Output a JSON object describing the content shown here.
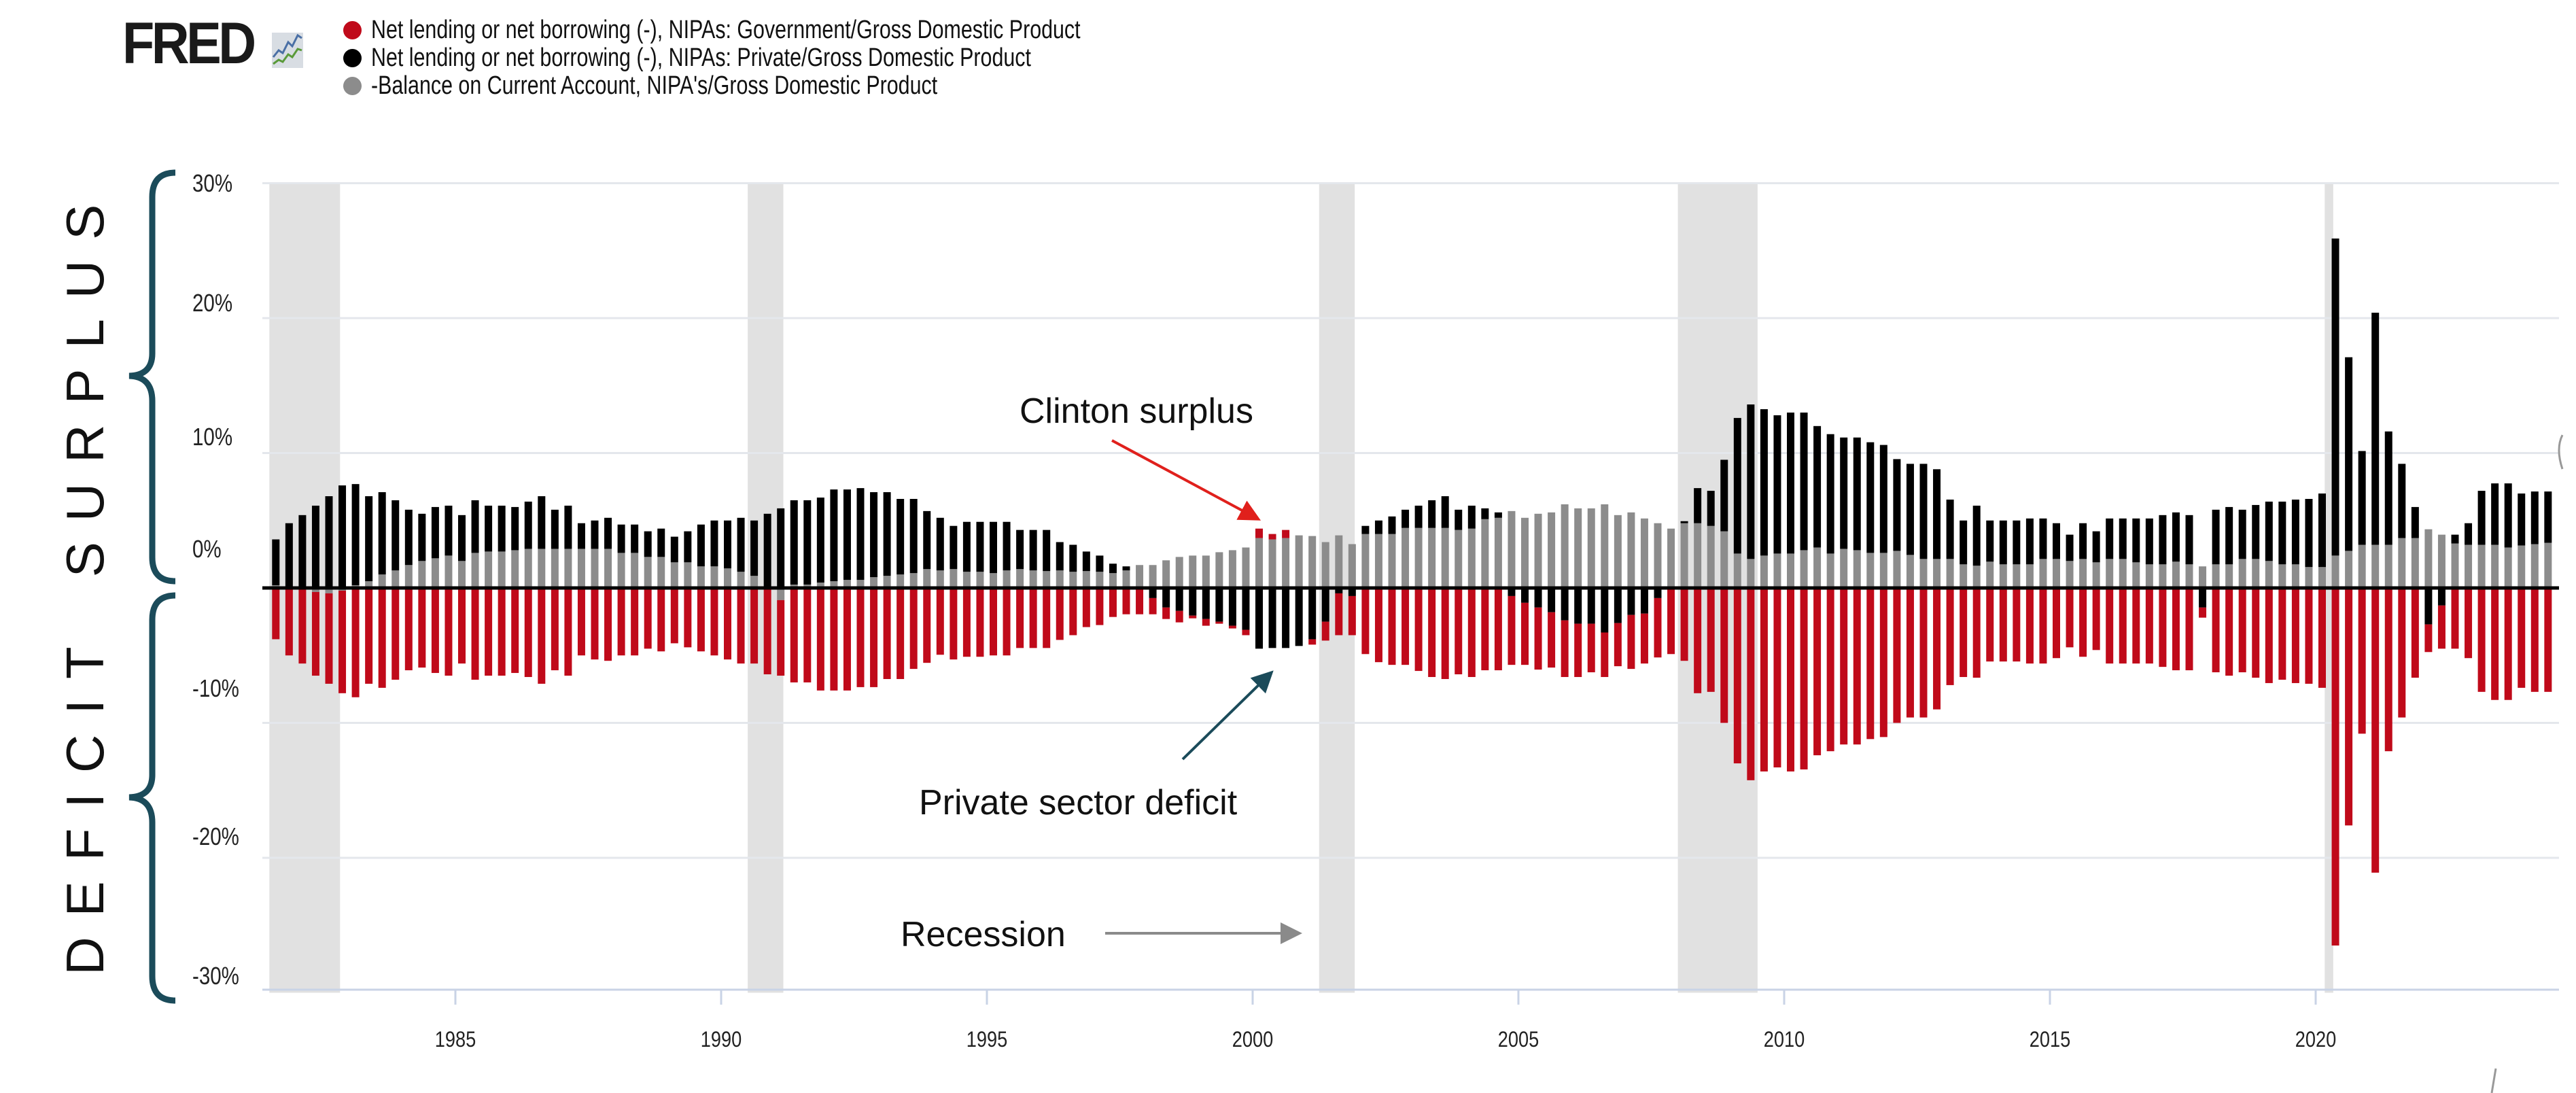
{
  "logo": {
    "text": "FRED",
    "icon": "chart-line-icon"
  },
  "legend": [
    {
      "label": "Net lending or net borrowing (-), NIPAs: Government/Gross Domestic Product",
      "color": "#c00a1a"
    },
    {
      "label": "Net lending or net borrowing (-), NIPAs: Private/Gross Domestic Product",
      "color": "#000000"
    },
    {
      "label": "-Balance on Current Account, NIPA's/Gross Domestic Product",
      "color": "#8c8c8c"
    }
  ],
  "side_labels": {
    "surplus": "SURPLUS",
    "deficit": "DEFICIT",
    "brace_color": "#1b4b5a"
  },
  "annotations": {
    "clinton": {
      "text": "Clinton surplus",
      "arrow_color": "#e0201c"
    },
    "private": {
      "text": "Private sector deficit",
      "arrow_color": "#1b4b5a"
    },
    "recession": {
      "text": "Recession",
      "arrow_color": "#8a8a8a"
    }
  },
  "chart_data": {
    "type": "bar",
    "stacked": true,
    "frequency": "quarterly",
    "start": "1981Q3",
    "end": "2024Q2",
    "ylim": [
      -30,
      30
    ],
    "yticks": [
      "30%",
      "20%",
      "10%",
      "0%",
      "-10%",
      "-20%",
      "-30%"
    ],
    "ytick_values": [
      30,
      20,
      10,
      0,
      -10,
      -20,
      -30
    ],
    "xticks": [
      "1985",
      "1990",
      "1995",
      "2000",
      "2005",
      "2010",
      "2015",
      "2020"
    ],
    "xlim": [
      1981.37,
      2024.58
    ],
    "grid": true,
    "recessions": [
      [
        1981.5,
        1982.83
      ],
      [
        1990.5,
        1991.17
      ],
      [
        2001.25,
        2001.92
      ],
      [
        2008.0,
        2009.5
      ],
      [
        2020.17,
        2020.33
      ]
    ],
    "series": [
      {
        "name": "-Balance on Current Account, NIPA's/Gross Domestic Product",
        "color": "#8c8c8c",
        "values": [
          0.2,
          0.1,
          0.0,
          -0.3,
          -0.4,
          -0.2,
          0.2,
          0.5,
          1.0,
          1.3,
          1.7,
          2.0,
          2.2,
          2.4,
          2.0,
          2.6,
          2.7,
          2.7,
          2.8,
          2.9,
          2.9,
          2.9,
          2.9,
          2.9,
          2.9,
          2.9,
          2.6,
          2.6,
          2.3,
          2.3,
          1.9,
          1.9,
          1.6,
          1.6,
          1.45,
          1.2,
          0.9,
          0.0,
          -0.9,
          0.25,
          0.25,
          0.4,
          0.5,
          0.6,
          0.6,
          0.8,
          0.9,
          1.0,
          1.1,
          1.4,
          1.3,
          1.4,
          1.2,
          1.2,
          1.1,
          1.3,
          1.4,
          1.3,
          1.25,
          1.3,
          1.2,
          1.25,
          1.2,
          1.1,
          1.3,
          1.7,
          1.7,
          2.05,
          2.3,
          2.4,
          2.4,
          2.65,
          2.8,
          3.0,
          3.7,
          3.6,
          3.7,
          3.9,
          3.85,
          3.4,
          3.9,
          3.25,
          4.0,
          4.0,
          4.0,
          4.45,
          4.45,
          4.45,
          4.45,
          4.3,
          4.4,
          5.1,
          5.2,
          5.7,
          5.2,
          5.5,
          5.6,
          6.2,
          5.9,
          5.9,
          6.2,
          5.4,
          5.6,
          5.15,
          4.8,
          4.4,
          4.8,
          4.8,
          4.6,
          4.2,
          2.55,
          2.15,
          2.4,
          2.55,
          2.55,
          2.8,
          3.0,
          2.55,
          2.9,
          2.8,
          2.6,
          2.6,
          2.75,
          2.45,
          2.15,
          2.15,
          2.15,
          1.75,
          1.65,
          1.95,
          1.75,
          1.75,
          1.75,
          2.15,
          2.15,
          2.0,
          2.15,
          1.9,
          2.15,
          2.15,
          1.9,
          1.75,
          1.75,
          1.95,
          1.75,
          1.6,
          1.75,
          1.75,
          2.15,
          2.15,
          2.0,
          1.75,
          1.75,
          1.55,
          1.55,
          2.4,
          2.75,
          3.2,
          3.2,
          3.2,
          3.7,
          3.7,
          4.35,
          3.95,
          3.3,
          3.2,
          3.2,
          3.2,
          3.0,
          3.15,
          3.25,
          3.35
        ]
      },
      {
        "name": "Net lending or net borrowing (-), NIPAs: Private/Gross Domestic Product",
        "color": "#000000",
        "values": [
          3.4,
          4.7,
          5.4,
          6.1,
          6.8,
          7.6,
          7.5,
          6.3,
          6.1,
          5.2,
          4.1,
          3.5,
          3.8,
          3.7,
          3.4,
          3.9,
          3.4,
          3.4,
          3.2,
          3.5,
          3.9,
          2.9,
          3.2,
          1.9,
          2.1,
          2.3,
          2.1,
          2.1,
          1.9,
          2.1,
          1.9,
          2.3,
          3.1,
          3.4,
          3.55,
          4.0,
          4.1,
          5.5,
          5.9,
          6.25,
          6.25,
          6.3,
          6.8,
          6.7,
          6.8,
          6.3,
          6.2,
          5.6,
          5.5,
          4.3,
          3.9,
          3.2,
          3.7,
          3.7,
          3.8,
          3.6,
          2.9,
          3.0,
          3.05,
          2.1,
          2.0,
          1.45,
          1.2,
          0.7,
          0.3,
          0.0,
          -0.75,
          -1.45,
          -1.7,
          -2.05,
          -2.3,
          -2.5,
          -2.8,
          -3.1,
          -4.5,
          -4.45,
          -4.45,
          -4.3,
          -3.8,
          -2.5,
          -0.4,
          -0.6,
          0.6,
          1.0,
          1.3,
          1.35,
          1.65,
          2.05,
          2.35,
          1.5,
          1.7,
          0.8,
          0.4,
          -0.6,
          -1.1,
          -1.45,
          -1.8,
          -2.4,
          -2.65,
          -2.65,
          -3.3,
          -2.6,
          -2.0,
          -1.9,
          -0.75,
          0.0,
          0.15,
          2.6,
          2.6,
          5.3,
          10.05,
          11.45,
          10.85,
          10.25,
          10.45,
          10.2,
          9.0,
          8.85,
          8.25,
          8.35,
          8.2,
          8.0,
          6.8,
          6.75,
          7.05,
          6.65,
          4.4,
          3.25,
          4.45,
          3.05,
          3.25,
          3.25,
          3.4,
          3.0,
          2.65,
          1.95,
          2.65,
          2.3,
          3.0,
          3.0,
          3.25,
          3.4,
          3.65,
          3.65,
          3.65,
          -1.45,
          4.05,
          4.25,
          3.65,
          4.0,
          4.4,
          4.65,
          4.8,
          5.05,
          5.45,
          23.5,
          14.35,
          6.95,
          17.2,
          8.4,
          5.5,
          2.3,
          -2.7,
          -1.3,
          0.65,
          1.6,
          4.0,
          4.55,
          4.75,
          3.85,
          3.9,
          3.8
        ]
      },
      {
        "name": "Net lending or net borrowing (-), NIPAs: Government/Gross Domestic Product",
        "color": "#c00a1a",
        "values": [
          -3.8,
          -5.0,
          -5.6,
          -6.2,
          -6.7,
          -7.6,
          -8.1,
          -7.1,
          -7.4,
          -6.8,
          -6.1,
          -5.9,
          -6.3,
          -6.5,
          -5.6,
          -6.8,
          -6.5,
          -6.5,
          -6.3,
          -6.6,
          -7.1,
          -6.1,
          -6.5,
          -5.0,
          -5.3,
          -5.4,
          -5.0,
          -5.0,
          -4.5,
          -4.7,
          -4.1,
          -4.4,
          -4.7,
          -5.0,
          -5.3,
          -5.6,
          -5.6,
          -6.4,
          -5.6,
          -7.0,
          -7.0,
          -7.6,
          -7.6,
          -7.6,
          -7.35,
          -7.35,
          -6.75,
          -6.75,
          -6.0,
          -5.55,
          -4.95,
          -5.3,
          -5.1,
          -5.1,
          -5.0,
          -5.0,
          -4.45,
          -4.45,
          -4.45,
          -3.85,
          -3.5,
          -2.9,
          -2.75,
          -2.15,
          -1.95,
          -1.95,
          -1.2,
          -0.85,
          -0.85,
          -0.2,
          -0.5,
          -0.15,
          -0.2,
          -0.4,
          0.7,
          0.4,
          0.6,
          0.0,
          -0.4,
          -1.4,
          -3.1,
          -2.9,
          -4.9,
          -5.5,
          -5.7,
          -5.7,
          -6.15,
          -6.6,
          -6.75,
          -6.4,
          -6.6,
          -6.1,
          -6.1,
          -5.1,
          -4.6,
          -4.6,
          -4.1,
          -4.2,
          -3.95,
          -3.6,
          -3.3,
          -3.2,
          -4.0,
          -3.7,
          -4.4,
          -4.9,
          -5.4,
          -7.8,
          -7.7,
          -10.0,
          -13.0,
          -14.25,
          -13.6,
          -13.3,
          -13.6,
          -13.45,
          -12.4,
          -12.1,
          -11.6,
          -11.6,
          -11.2,
          -11.05,
          -10.0,
          -9.6,
          -9.6,
          -9.0,
          -7.2,
          -6.6,
          -6.65,
          -5.45,
          -5.45,
          -5.45,
          -5.6,
          -5.6,
          -5.2,
          -4.4,
          -5.1,
          -4.6,
          -5.6,
          -5.6,
          -5.6,
          -5.6,
          -5.85,
          -6.1,
          -6.1,
          -0.75,
          -6.25,
          -6.5,
          -6.25,
          -6.65,
          -7.05,
          -6.8,
          -7.05,
          -7.1,
          -7.4,
          -26.5,
          -17.6,
          -10.8,
          -21.1,
          -12.1,
          -9.6,
          -6.65,
          -2.05,
          -3.2,
          -4.5,
          -5.2,
          -7.7,
          -8.3,
          -8.3,
          -7.4,
          -7.7,
          -7.7
        ]
      }
    ]
  }
}
